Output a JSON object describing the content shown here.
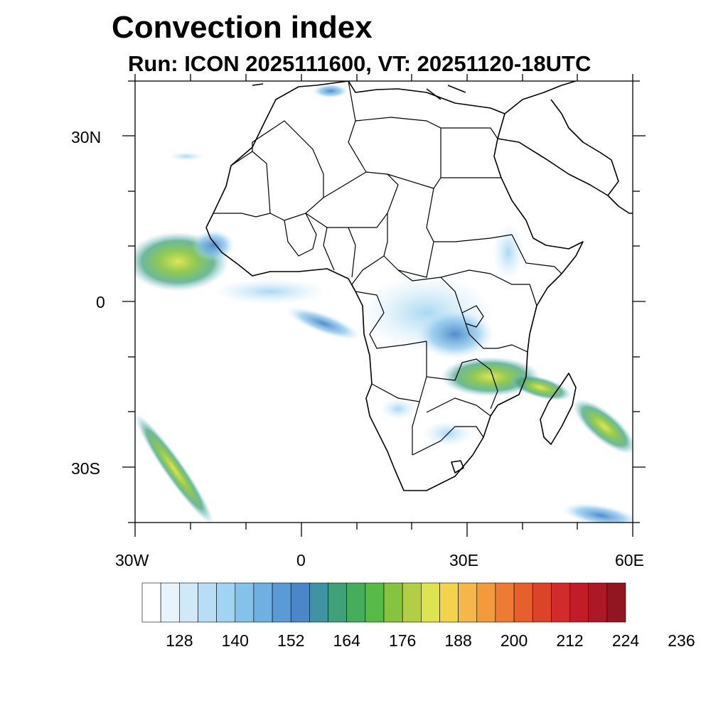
{
  "title": "Convection index",
  "subtitle": "Run: ICON 2025111600,  VT: 20251120-18UTC",
  "map": {
    "projection": "equirectangular",
    "lon_range": [
      -30,
      60
    ],
    "lat_range": [
      -40,
      40
    ],
    "lat_labels": [
      "30N",
      "0",
      "30S"
    ],
    "lon_labels": [
      "30W",
      "0",
      "30E",
      "60E"
    ]
  },
  "colorbar": {
    "colors": [
      "#ffffff",
      "#e8f4fb",
      "#cfe9f8",
      "#b7def6",
      "#9fd4f3",
      "#84c2ec",
      "#6eb0e2",
      "#5a9bd6",
      "#4a86c8",
      "#3f93a3",
      "#3ea178",
      "#45ad5c",
      "#58ba47",
      "#86c43f",
      "#b3ce46",
      "#dde351",
      "#f3d24e",
      "#f6b74a",
      "#f39a3d",
      "#ee7b33",
      "#e5602d",
      "#dc4429",
      "#d22b2b",
      "#c11d29",
      "#ad1827",
      "#921622"
    ],
    "tick_labels": [
      "128",
      "140",
      "152",
      "164",
      "176",
      "188",
      "200",
      "212",
      "224",
      "236"
    ]
  }
}
